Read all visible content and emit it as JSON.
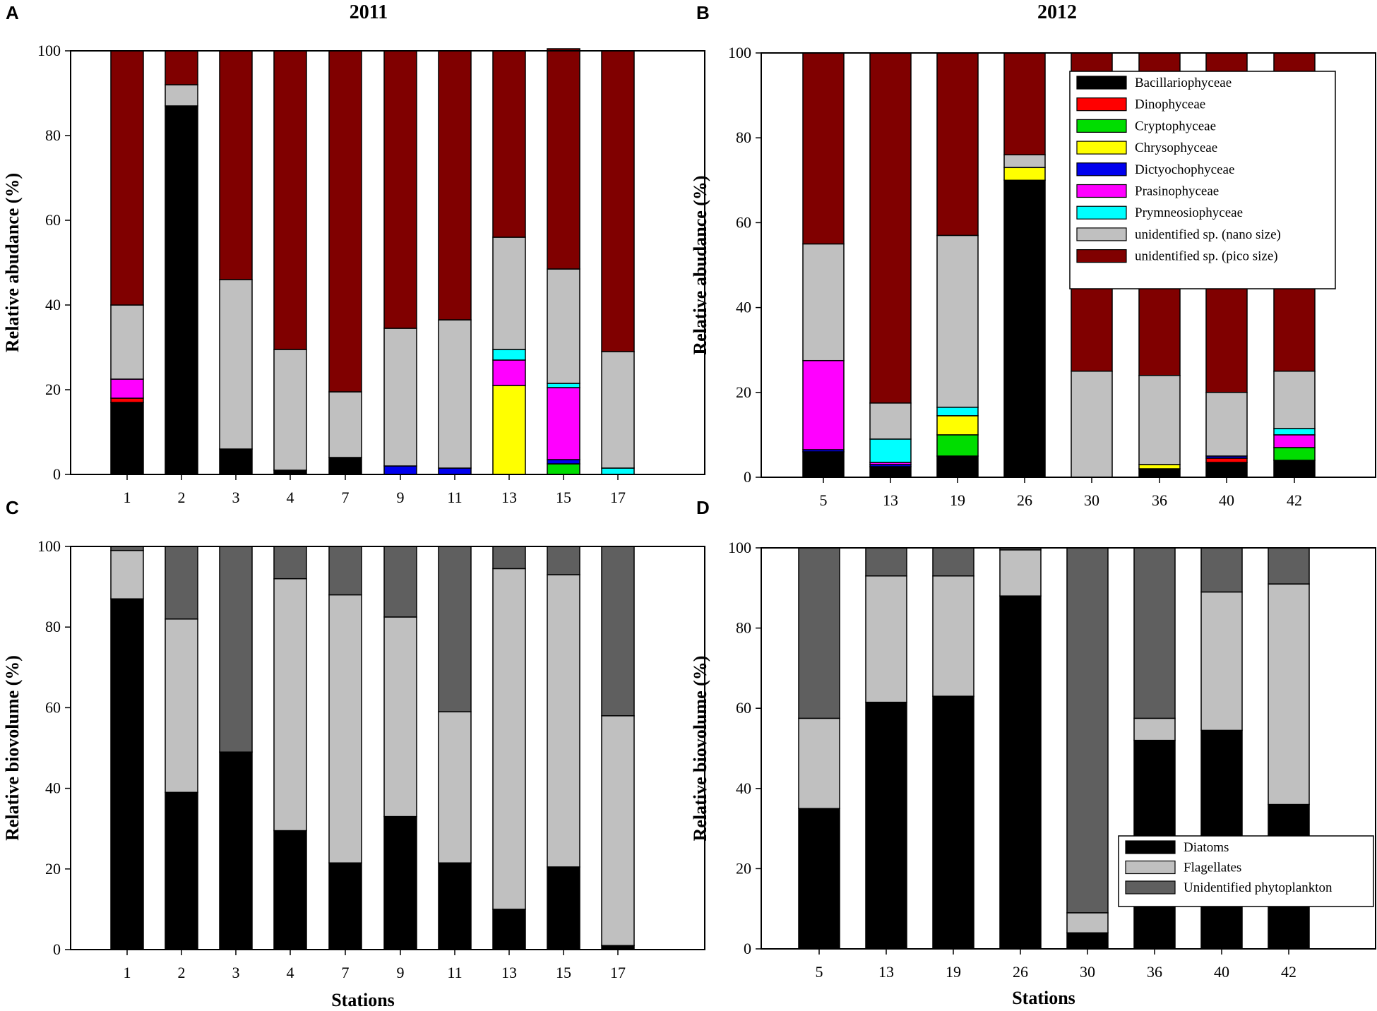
{
  "chart_data": [
    {
      "panel": "A",
      "type": "bar",
      "stacked": true,
      "title": "2011",
      "xlabel": "",
      "ylabel": "Relative abudance (%)",
      "ylim": [
        0,
        100
      ],
      "yticks": [
        0,
        20,
        40,
        60,
        80,
        100
      ],
      "categories": [
        "1",
        "2",
        "3",
        "4",
        "7",
        "9",
        "11",
        "13",
        "15",
        "17"
      ],
      "series": [
        {
          "name": "Bacillariophyceae",
          "color": "#000000",
          "values": [
            17,
            87,
            6,
            1,
            4,
            0,
            0,
            0,
            0,
            0
          ]
        },
        {
          "name": "Dinophyceae",
          "color": "#ff0000",
          "values": [
            1,
            0,
            0,
            0,
            0,
            0,
            0,
            0,
            0,
            0
          ]
        },
        {
          "name": "Cryptophyceae",
          "color": "#00dd00",
          "values": [
            0,
            0,
            0,
            0,
            0,
            0,
            0,
            0,
            2.5,
            0
          ]
        },
        {
          "name": "Chrysophyceae",
          "color": "#ffff00",
          "values": [
            0,
            0,
            0,
            0,
            0,
            0,
            0,
            21,
            0,
            0
          ]
        },
        {
          "name": "Dictyochophyceae",
          "color": "#0000ee",
          "values": [
            0,
            0,
            0,
            0,
            0,
            2,
            1.5,
            0,
            1,
            0
          ]
        },
        {
          "name": "Prasinophyceae",
          "color": "#ff00ff",
          "values": [
            4.5,
            0,
            0,
            0,
            0,
            0,
            0,
            6,
            17,
            0
          ]
        },
        {
          "name": "Prymneosiophyceae",
          "color": "#00ffff",
          "values": [
            0,
            0,
            0,
            0,
            0,
            0,
            0,
            2.5,
            1,
            1.5
          ]
        },
        {
          "name": "unidentified sp. (nano size)",
          "color": "#c0c0c0",
          "values": [
            17.5,
            5,
            40,
            28.5,
            15.5,
            32.5,
            35,
            26.5,
            27,
            27.5
          ]
        },
        {
          "name": "unidentified sp. (pico size)",
          "color": "#800000",
          "values": [
            60,
            8,
            54,
            70.5,
            80.5,
            65.5,
            63.5,
            44,
            52,
            71
          ]
        }
      ]
    },
    {
      "panel": "B",
      "type": "bar",
      "stacked": true,
      "title": "2012",
      "xlabel": "",
      "ylabel": "Relative abudance (%)",
      "ylim": [
        0,
        100
      ],
      "yticks": [
        0,
        20,
        40,
        60,
        80,
        100
      ],
      "categories": [
        "5",
        "13",
        "19",
        "26",
        "30",
        "36",
        "40",
        "42"
      ],
      "legend_position": "top-right",
      "series": [
        {
          "name": "Bacillariophyceae",
          "color": "#000000",
          "values": [
            6,
            2.5,
            5,
            70,
            0,
            2,
            3.5,
            4
          ]
        },
        {
          "name": "Dinophyceae",
          "color": "#ff0000",
          "values": [
            0,
            0,
            0,
            0,
            0,
            0,
            1,
            0
          ]
        },
        {
          "name": "Cryptophyceae",
          "color": "#00dd00",
          "values": [
            0,
            0,
            5,
            0,
            0,
            0,
            0,
            3
          ]
        },
        {
          "name": "Chrysophyceae",
          "color": "#ffff00",
          "values": [
            0,
            0,
            4.5,
            3,
            0,
            1,
            0,
            0
          ]
        },
        {
          "name": "Dictyochophyceae",
          "color": "#0000ee",
          "values": [
            0.5,
            0.5,
            0,
            0,
            0,
            0,
            0.5,
            0
          ]
        },
        {
          "name": "Prasinophyceae",
          "color": "#ff00ff",
          "values": [
            21,
            0.5,
            0,
            0,
            0,
            0,
            0,
            3
          ]
        },
        {
          "name": "Prymneosiophyceae",
          "color": "#00ffff",
          "values": [
            0,
            5.5,
            2,
            0,
            0,
            0,
            0,
            1.5
          ]
        },
        {
          "name": "unidentified sp. (nano size)",
          "color": "#c0c0c0",
          "values": [
            27.5,
            8.5,
            40.5,
            3,
            25,
            21,
            15,
            13.5
          ]
        },
        {
          "name": "unidentified sp. (pico size)",
          "color": "#800000",
          "values": [
            45,
            82.5,
            43,
            24,
            75,
            76,
            80,
            75
          ]
        }
      ]
    },
    {
      "panel": "C",
      "type": "bar",
      "stacked": true,
      "title": "",
      "xlabel": "Stations",
      "ylabel": "Relative biovolume (%)",
      "ylim": [
        0,
        100
      ],
      "yticks": [
        0,
        20,
        40,
        60,
        80,
        100
      ],
      "categories": [
        "1",
        "2",
        "3",
        "4",
        "7",
        "9",
        "11",
        "13",
        "15",
        "17"
      ],
      "series": [
        {
          "name": "Diatoms",
          "color": "#000000",
          "values": [
            87,
            39,
            49,
            29.5,
            21.5,
            33,
            21.5,
            10,
            20.5,
            1
          ]
        },
        {
          "name": "Flagellates",
          "color": "#c0c0c0",
          "values": [
            12,
            43,
            0,
            62.5,
            66.5,
            49.5,
            37.5,
            84.5,
            72.5,
            57
          ]
        },
        {
          "name": "Unidentified phytoplankton",
          "color": "#5f5f5f",
          "values": [
            1,
            18,
            51,
            8,
            12,
            17.5,
            41,
            5.5,
            7,
            42
          ]
        }
      ]
    },
    {
      "panel": "D",
      "type": "bar",
      "stacked": true,
      "title": "",
      "xlabel": "Stations",
      "ylabel": "Relative biovolume (%)",
      "ylim": [
        0,
        100
      ],
      "yticks": [
        0,
        20,
        40,
        60,
        80,
        100
      ],
      "categories": [
        "5",
        "13",
        "19",
        "26",
        "30",
        "36",
        "40",
        "42"
      ],
      "legend_position": "bottom-right",
      "series": [
        {
          "name": "Diatoms",
          "color": "#000000",
          "values": [
            35,
            61.5,
            63,
            88,
            4,
            52,
            54.5,
            36
          ]
        },
        {
          "name": "Flagellates",
          "color": "#c0c0c0",
          "values": [
            22.5,
            31.5,
            30,
            11.5,
            5,
            5.5,
            34.5,
            55
          ]
        },
        {
          "name": "Unidentified phytoplankton",
          "color": "#5f5f5f",
          "values": [
            42.5,
            7,
            7,
            0.5,
            91,
            42.5,
            11,
            9
          ]
        }
      ]
    }
  ]
}
